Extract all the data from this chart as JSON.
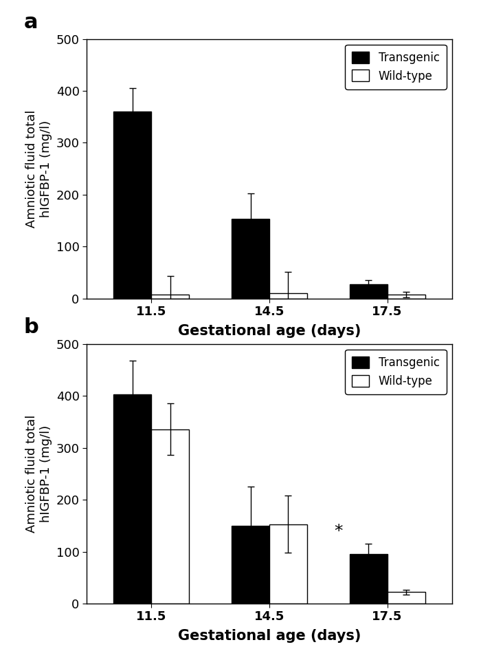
{
  "panel_a": {
    "label": "a",
    "ages": [
      "11.5",
      "14.5",
      "17.5"
    ],
    "transgenic_values": [
      360,
      153,
      28
    ],
    "transgenic_errors": [
      45,
      50,
      8
    ],
    "wildtype_values": [
      8,
      10,
      8
    ],
    "wildtype_errors": [
      35,
      42,
      5
    ],
    "ylim": [
      0,
      500
    ],
    "yticks": [
      0,
      100,
      200,
      300,
      400,
      500
    ],
    "ylabel": "Amniotic fluid total\nhIGFBP-1 (mg/l)",
    "xlabel": "Gestational age (days)",
    "legend_labels": [
      "Transgenic",
      "Wild-type"
    ],
    "asterisk": null
  },
  "panel_b": {
    "label": "b",
    "ages": [
      "11.5",
      "14.5",
      "17.5"
    ],
    "transgenic_values": [
      403,
      150,
      95
    ],
    "transgenic_errors": [
      65,
      75,
      20
    ],
    "wildtype_values": [
      336,
      153,
      22
    ],
    "wildtype_errors": [
      50,
      55,
      5
    ],
    "ylim": [
      0,
      500
    ],
    "yticks": [
      0,
      100,
      200,
      300,
      400,
      500
    ],
    "ylabel": "Amniotic fluid total\nhIGFBP-1 (mg/l)",
    "xlabel": "Gestational age (days)",
    "legend_labels": [
      "Transgenic",
      "Wild-type"
    ],
    "asterisk": "17.5"
  },
  "bar_width": 0.32,
  "transgenic_color": "#000000",
  "wildtype_color": "#ffffff",
  "edge_color": "#000000",
  "figure_bg": "#ffffff",
  "tick_fontsize": 13,
  "axis_label_fontsize": 13,
  "xlabel_fontsize": 15,
  "legend_fontsize": 12,
  "panel_label_fontsize": 22
}
